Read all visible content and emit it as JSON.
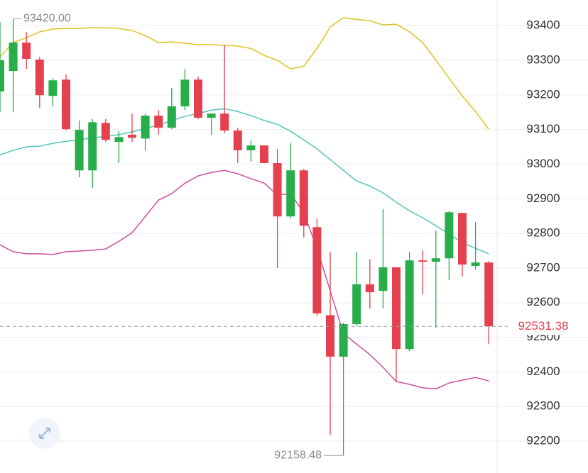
{
  "chart_data": {
    "type": "candlestick",
    "up_color": "#27ad4a",
    "down_color": "#e5404e",
    "open": [
      93210,
      93269,
      93351,
      93302,
      93197,
      93244,
      92982,
      92982,
      93119,
      93064,
      93085,
      93074,
      93140,
      93105,
      93167,
      93244,
      93134,
      93146,
      93097,
      93040,
      93054,
      93003,
      92849,
      92982,
      92818,
      92564,
      92444,
      92538,
      92653,
      92634,
      92702,
      92466,
      92722,
      92718,
      92728,
      92859,
      92706,
      92716
    ],
    "high": [
      93410,
      93420,
      93382,
      93310,
      93248,
      93259,
      93126,
      93130,
      93130,
      93095,
      93146,
      93146,
      93156,
      93220,
      93275,
      93253,
      93146,
      93343,
      93105,
      93068,
      93054,
      93044,
      93060,
      92986,
      92843,
      92747,
      92542,
      92747,
      92726,
      92870,
      92702,
      92747,
      92751,
      92808,
      92865,
      92859,
      92833,
      92720
    ],
    "low": [
      93150,
      93150,
      93275,
      93162,
      93167,
      93097,
      92962,
      92931,
      93064,
      93003,
      93064,
      93040,
      93085,
      93101,
      93156,
      93130,
      93085,
      93089,
      93003,
      93007,
      93003,
      92700,
      92843,
      92788,
      92562,
      92218,
      92158.48,
      92532,
      92583,
      92583,
      92374,
      92460,
      92624,
      92528,
      92665,
      92675,
      92696,
      92480
    ],
    "close": [
      93300,
      93351,
      93304,
      93199,
      93242,
      93101,
      93099,
      93121,
      93070,
      93078,
      93076,
      93140,
      93105,
      93167,
      93244,
      93134,
      93146,
      93097,
      93040,
      93054,
      93003,
      92849,
      92982,
      92822,
      92569,
      92444,
      92538,
      92653,
      92630,
      92702,
      92466,
      92722,
      92718,
      92728,
      92861,
      92710,
      92716,
      92531.38
    ],
    "series": [
      {
        "color": "#e0c21f",
        "values": [
          93310,
          93351,
          93365,
          93382,
          93390,
          93392,
          93392,
          93394,
          93394,
          93392,
          93386,
          93371,
          93351,
          93353,
          93349,
          93345,
          93345,
          93343,
          93341,
          93334,
          93314,
          93300,
          93275,
          93283,
          93334,
          93396,
          93423,
          93418,
          93414,
          93402,
          93404,
          93382,
          93351,
          93300,
          93248,
          93197,
          93152,
          93101
        ]
      },
      {
        "color": "#4fc7b8",
        "values": [
          93027,
          93040,
          93050,
          93052,
          93060,
          93066,
          93070,
          93076,
          93080,
          93085,
          93093,
          93103,
          93113,
          93126,
          93138,
          93146,
          93156,
          93160,
          93152,
          93140,
          93126,
          93115,
          93095,
          93070,
          93044,
          93013,
          92982,
          92951,
          92937,
          92917,
          92890,
          92865,
          92845,
          92822,
          92798,
          92773,
          92757,
          92741
        ]
      },
      {
        "color": "#cc4f9e",
        "values": [
          92767,
          92747,
          92741,
          92741,
          92739,
          92747,
          92749,
          92751,
          92755,
          92777,
          92802,
          92849,
          92896,
          92915,
          92945,
          92966,
          92976,
          92982,
          92972,
          92958,
          92945,
          92911,
          92915,
          92859,
          92757,
          92634,
          92511,
          92480,
          92450,
          92413,
          92372,
          92364,
          92354,
          92351,
          92368,
          92376,
          92384,
          92374
        ]
      }
    ],
    "ylim": [
      92108,
      93474
    ],
    "yticks": [
      92200,
      92300,
      92400,
      92500,
      92600,
      92700,
      92800,
      92900,
      93000,
      93100,
      93200,
      93300,
      93400
    ],
    "grid": true,
    "max_marker": {
      "value": 93420,
      "label": "93420.00"
    },
    "min_marker": 92158.48,
    "last_price": 92531.38
  }
}
